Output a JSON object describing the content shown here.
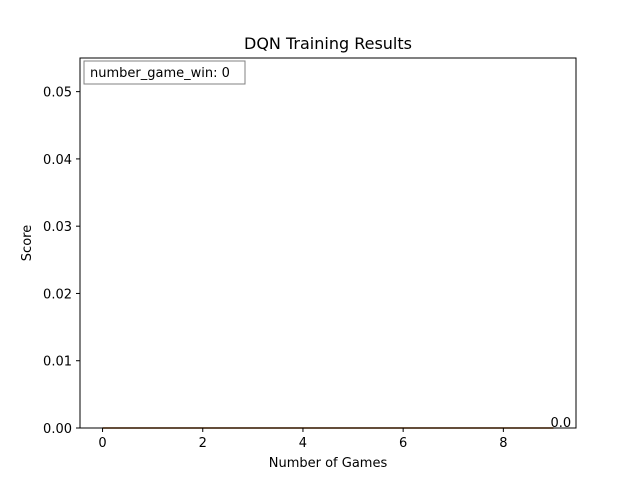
{
  "chart_data": {
    "type": "line",
    "title": "DQN Training Results",
    "xlabel": "Number of Games",
    "ylabel": "Score",
    "xlim": [
      -0.45,
      9.45
    ],
    "ylim": [
      0,
      0.055
    ],
    "xticks": [
      0,
      2,
      4,
      6,
      8
    ],
    "xtick_labels": [
      "0",
      "2",
      "4",
      "6",
      "8"
    ],
    "yticks": [
      0.0,
      0.01,
      0.02,
      0.03,
      0.04,
      0.05
    ],
    "ytick_labels": [
      "0.00",
      "0.01",
      "0.02",
      "0.03",
      "0.04",
      "0.05"
    ],
    "grid": false,
    "series": [
      {
        "color": "#1f77b4",
        "x": [
          0,
          1,
          2,
          3,
          4,
          5,
          6,
          7,
          8,
          9
        ],
        "values": [
          0,
          0,
          0,
          0,
          0,
          0,
          0,
          0,
          0,
          0
        ]
      },
      {
        "color": "#ff7f0e",
        "x": [
          0,
          1,
          2,
          3,
          4,
          5,
          6,
          7,
          8,
          9
        ],
        "values": [
          0,
          0,
          0,
          0,
          0,
          0,
          0,
          0,
          0,
          0
        ]
      }
    ],
    "annotations": [
      {
        "text": "0.0",
        "x": 9,
        "y": 0
      }
    ],
    "textbox": {
      "text": "number_game_win: 0",
      "placement": "top-left"
    }
  }
}
